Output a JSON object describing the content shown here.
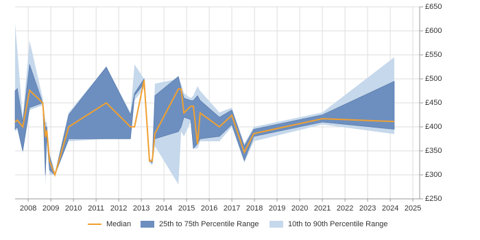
{
  "chart_data": {
    "type": "range-line",
    "x": [
      2007.42,
      2007.52,
      2007.76,
      2008.06,
      2008.64,
      2008.76,
      2008.82,
      2008.94,
      2009.18,
      2009.79,
      2011.45,
      2012.52,
      2012.7,
      2013.12,
      2013.36,
      2013.48,
      2013.6,
      2014.64,
      2014.76,
      2014.88,
      2015.18,
      2015.3,
      2015.48,
      2015.6,
      2016.45,
      2017.0,
      2017.55,
      2017.97,
      2021.0,
      2024.18
    ],
    "series": [
      {
        "name": "Median",
        "color": "#f0a030",
        "values": [
          410,
          414,
          400,
          476,
          450,
          379,
          393,
          329,
          300,
          400,
          450,
          400,
          400,
          497,
          329,
          329,
          386,
          479,
          479,
          429,
          443,
          443,
          364,
          429,
          400,
          424,
          347,
          386,
          417,
          411
        ]
      },
      {
        "name": "25th to 75th Percentile Range",
        "color": "#6d8fbf",
        "lower": [
          395,
          400,
          350,
          440,
          450,
          300,
          380,
          310,
          300,
          375,
          375,
          375,
          465,
          490,
          330,
          325,
          375,
          390,
          400,
          420,
          415,
          355,
          365,
          375,
          380,
          405,
          330,
          380,
          410,
          395
        ],
        "upper": [
          475,
          480,
          410,
          530,
          450,
          400,
          400,
          340,
          300,
          425,
          525,
          425,
          470,
          500,
          330,
          330,
          465,
          505,
          480,
          460,
          455,
          455,
          465,
          455,
          420,
          435,
          360,
          395,
          425,
          495
        ]
      },
      {
        "name": "10th to 90th Percentile Range",
        "color": "#c6d8eb",
        "lower": [
          390,
          395,
          345,
          435,
          445,
          280,
          370,
          300,
          300,
          370,
          375,
          375,
          455,
          480,
          325,
          320,
          360,
          280,
          390,
          380,
          410,
          355,
          355,
          370,
          370,
          400,
          325,
          370,
          405,
          385
        ],
        "upper": [
          615,
          560,
          420,
          580,
          460,
          410,
          410,
          345,
          305,
          430,
          525,
          430,
          530,
          500,
          330,
          335,
          490,
          500,
          490,
          470,
          460,
          465,
          485,
          475,
          430,
          440,
          365,
          400,
          430,
          545
        ]
      }
    ],
    "xlim": [
      2007.42,
      2025.3
    ],
    "xticks": [
      2008,
      2009,
      2010,
      2011,
      2012,
      2013,
      2014,
      2015,
      2016,
      2017,
      2018,
      2019,
      2020,
      2021,
      2022,
      2023,
      2024,
      2025
    ],
    "ylim": [
      250,
      650
    ],
    "yticks": [
      {
        "value": 250,
        "label": "£250"
      },
      {
        "value": 300,
        "label": "£300"
      },
      {
        "value": 350,
        "label": "£350"
      },
      {
        "value": 400,
        "label": "£400"
      },
      {
        "value": 450,
        "label": "£450"
      },
      {
        "value": 500,
        "label": "£500"
      },
      {
        "value": 550,
        "label": "£550"
      },
      {
        "value": 600,
        "label": "£600"
      },
      {
        "value": 650,
        "label": "£650"
      }
    ],
    "grid": true,
    "legend": "bottom"
  }
}
